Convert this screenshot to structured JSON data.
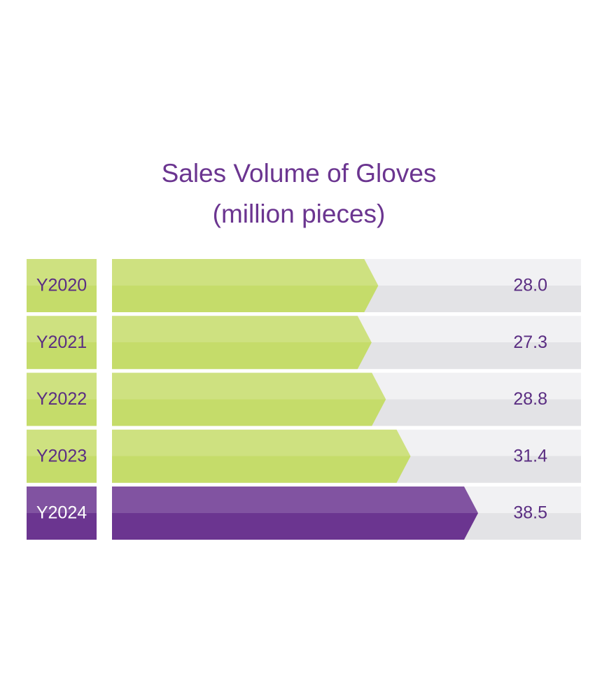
{
  "chart_data": {
    "type": "bar",
    "title": "Sales Volume of Gloves",
    "subtitle": "(million pieces)",
    "categories": [
      "Y2020",
      "Y2021",
      "Y2022",
      "Y2023",
      "Y2024"
    ],
    "values": [
      28.0,
      27.3,
      28.8,
      31.4,
      38.5
    ],
    "value_labels": [
      "28.0",
      "27.3",
      "28.8",
      "31.4",
      "38.5"
    ],
    "colors": [
      "#c5dc6a",
      "#c5dc6a",
      "#c5dc6a",
      "#c5dc6a",
      "#6b3590"
    ]
  }
}
